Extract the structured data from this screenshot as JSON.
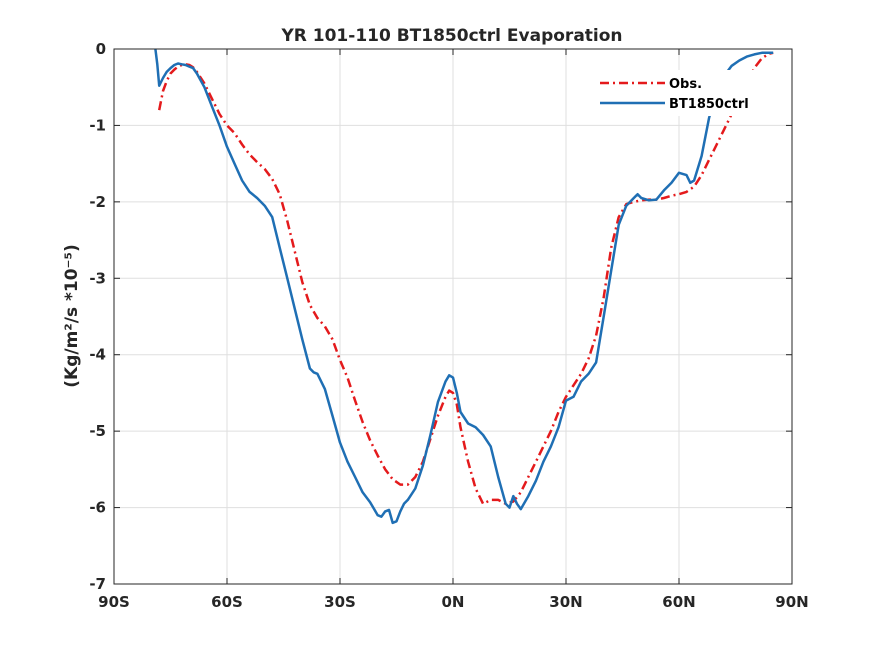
{
  "chart_data": {
    "type": "line",
    "title": "YR 101-110 BT1850ctrl Evaporation",
    "ylabel": "(Kg/m²/s *10⁻⁵)",
    "xlim": [
      -90,
      90
    ],
    "ylim": [
      -7,
      0
    ],
    "xticks": [
      -90,
      -60,
      -30,
      0,
      30,
      60,
      90
    ],
    "xtick_labels": [
      "90S",
      "60S",
      "30S",
      "0N",
      "30N",
      "60N",
      "90N"
    ],
    "yticks": [
      0,
      -1,
      -2,
      -3,
      -4,
      -5,
      -6,
      -7
    ],
    "ytick_labels": [
      "0",
      "-1",
      "-2",
      "-3",
      "-4",
      "-5",
      "-6",
      "-7"
    ],
    "grid": true,
    "legend_position": "top-right",
    "series": [
      {
        "name": "Obs.",
        "color": "#e41a1c",
        "style": "dash-dot",
        "x": [
          -78,
          -77,
          -76,
          -75,
          -74,
          -73,
          -72,
          -71,
          -70,
          -69,
          -68,
          -66,
          -64,
          -62,
          -60,
          -58,
          -56,
          -54,
          -52,
          -50,
          -48,
          -46,
          -44,
          -42,
          -40,
          -38,
          -36,
          -34,
          -32,
          -30,
          -28,
          -26,
          -24,
          -22,
          -20,
          -18,
          -16,
          -14,
          -12,
          -10,
          -8,
          -6,
          -4,
          -2,
          -1,
          0,
          1,
          2,
          4,
          6,
          8,
          10,
          12,
          14,
          16,
          18,
          20,
          22,
          24,
          26,
          28,
          30,
          32,
          34,
          36,
          38,
          40,
          42,
          44,
          46,
          48,
          50,
          52,
          54,
          56,
          58,
          60,
          62,
          64,
          66,
          68,
          70,
          72,
          74,
          76,
          78,
          80,
          82,
          84,
          85
        ],
        "y": [
          -0.8,
          -0.55,
          -0.42,
          -0.32,
          -0.27,
          -0.23,
          -0.21,
          -0.2,
          -0.21,
          -0.24,
          -0.3,
          -0.45,
          -0.65,
          -0.85,
          -1.0,
          -1.1,
          -1.25,
          -1.38,
          -1.48,
          -1.57,
          -1.7,
          -1.9,
          -2.25,
          -2.65,
          -3.05,
          -3.35,
          -3.52,
          -3.63,
          -3.8,
          -4.07,
          -4.3,
          -4.6,
          -4.88,
          -5.12,
          -5.32,
          -5.5,
          -5.63,
          -5.7,
          -5.7,
          -5.6,
          -5.4,
          -5.1,
          -4.8,
          -4.55,
          -4.47,
          -4.5,
          -4.65,
          -4.95,
          -5.4,
          -5.75,
          -5.95,
          -5.9,
          -5.9,
          -5.95,
          -5.92,
          -5.8,
          -5.6,
          -5.4,
          -5.2,
          -5.0,
          -4.75,
          -4.55,
          -4.4,
          -4.25,
          -4.05,
          -3.75,
          -3.25,
          -2.6,
          -2.2,
          -2.03,
          -2.0,
          -1.98,
          -1.97,
          -1.97,
          -1.95,
          -1.92,
          -1.9,
          -1.87,
          -1.8,
          -1.65,
          -1.45,
          -1.25,
          -1.05,
          -0.85,
          -0.65,
          -0.45,
          -0.25,
          -0.12,
          -0.06,
          -0.05
        ]
      },
      {
        "name": "BT1850ctrl",
        "color": "#1f6fb4",
        "style": "solid",
        "x": [
          -79,
          -78.5,
          -78,
          -77,
          -76,
          -75,
          -74,
          -73,
          -72,
          -71,
          -70,
          -69,
          -68,
          -66,
          -64,
          -62,
          -60,
          -58,
          -56,
          -54,
          -52,
          -50,
          -48,
          -46,
          -44,
          -42,
          -40,
          -38,
          -37,
          -36,
          -34,
          -32,
          -30,
          -28,
          -26,
          -24,
          -22,
          -20,
          -19,
          -18,
          -17,
          -16,
          -15,
          -14,
          -13,
          -12,
          -10,
          -8,
          -6,
          -4,
          -2,
          -1,
          0,
          1,
          2,
          4,
          6,
          8,
          10,
          12,
          14,
          15,
          16,
          17,
          18,
          20,
          22,
          24,
          26,
          28,
          30,
          32,
          34,
          36,
          38,
          40,
          42,
          44,
          46,
          48,
          49,
          50,
          52,
          54,
          56,
          58,
          60,
          62,
          63,
          64,
          66,
          68,
          70,
          72,
          74,
          76,
          78,
          80,
          82,
          84,
          85
        ],
        "y": [
          0,
          -0.2,
          -0.48,
          -0.38,
          -0.3,
          -0.25,
          -0.21,
          -0.19,
          -0.2,
          -0.21,
          -0.23,
          -0.25,
          -0.32,
          -0.5,
          -0.75,
          -1.0,
          -1.28,
          -1.5,
          -1.72,
          -1.87,
          -1.95,
          -2.05,
          -2.2,
          -2.6,
          -3.0,
          -3.4,
          -3.8,
          -4.18,
          -4.23,
          -4.25,
          -4.45,
          -4.8,
          -5.15,
          -5.4,
          -5.6,
          -5.8,
          -5.93,
          -6.1,
          -6.12,
          -6.05,
          -6.03,
          -6.2,
          -6.18,
          -6.05,
          -5.95,
          -5.9,
          -5.75,
          -5.45,
          -5.05,
          -4.62,
          -4.35,
          -4.27,
          -4.3,
          -4.5,
          -4.75,
          -4.9,
          -4.95,
          -5.05,
          -5.2,
          -5.6,
          -5.95,
          -6.0,
          -5.85,
          -5.95,
          -6.02,
          -5.85,
          -5.65,
          -5.4,
          -5.2,
          -4.95,
          -4.6,
          -4.55,
          -4.35,
          -4.25,
          -4.1,
          -3.5,
          -2.9,
          -2.3,
          -2.05,
          -1.95,
          -1.9,
          -1.95,
          -1.98,
          -1.97,
          -1.85,
          -1.75,
          -1.62,
          -1.65,
          -1.75,
          -1.72,
          -1.4,
          -0.9,
          -0.55,
          -0.35,
          -0.22,
          -0.15,
          -0.1,
          -0.07,
          -0.05,
          -0.05,
          -0.05
        ]
      }
    ]
  }
}
